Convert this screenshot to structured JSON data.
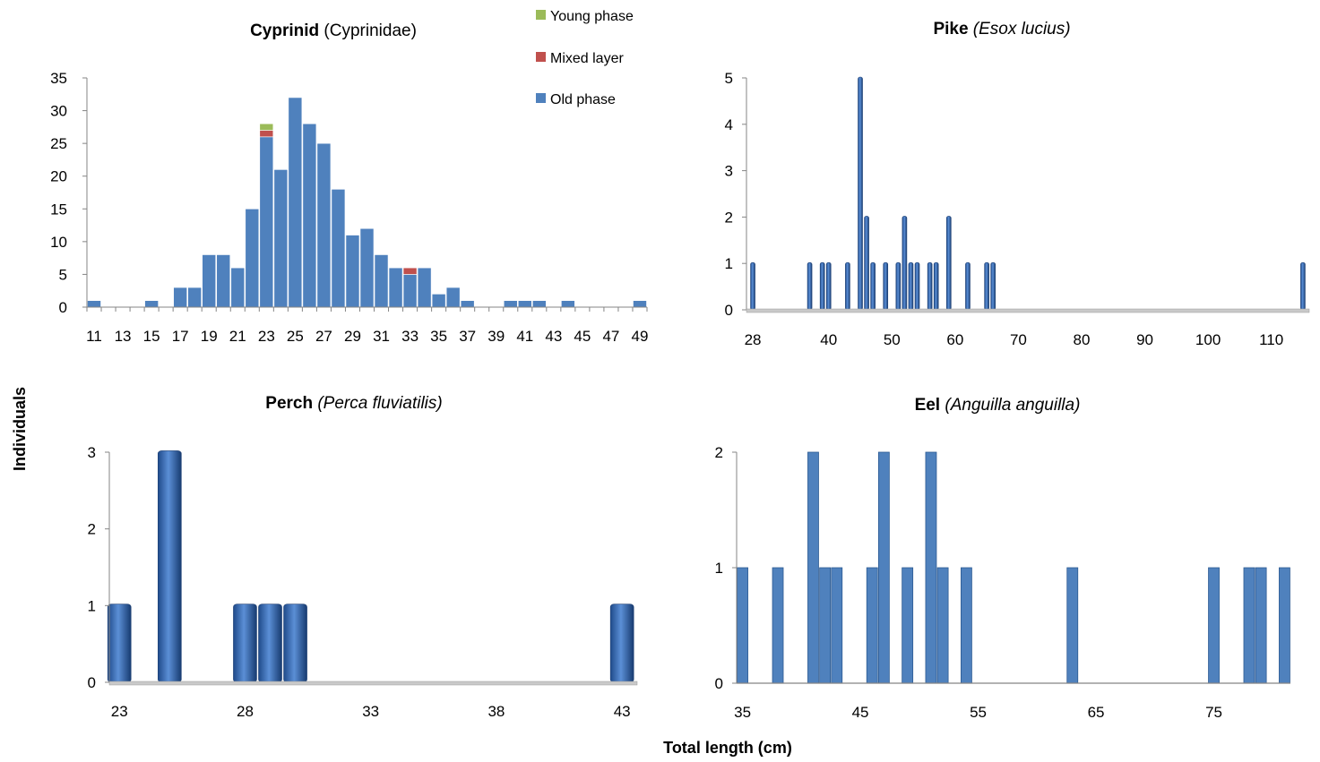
{
  "figure": {
    "ylabel": "Individuals",
    "xlabel": "Total length (cm)"
  },
  "legend": {
    "entries": [
      {
        "label": "Young phase",
        "color": "#9bbb59"
      },
      {
        "label": "Mixed layer",
        "color": "#c0504d"
      },
      {
        "label": "Old phase",
        "color": "#4f81bd"
      }
    ]
  },
  "chart_data": [
    {
      "id": "cyprinid",
      "type": "bar",
      "stacked": true,
      "title_bold": "Cyprinid",
      "title_rest": " (Cyprinidae)",
      "title_italic": false,
      "categories": [
        11,
        12,
        13,
        14,
        15,
        16,
        17,
        18,
        19,
        20,
        21,
        22,
        23,
        24,
        25,
        26,
        27,
        28,
        29,
        30,
        31,
        32,
        33,
        34,
        35,
        36,
        37,
        38,
        39,
        40,
        41,
        42,
        43,
        44,
        45,
        46,
        47,
        48,
        49
      ],
      "x_tick_labels": [
        "11",
        "13",
        "15",
        "17",
        "19",
        "21",
        "23",
        "25",
        "27",
        "29",
        "31",
        "33",
        "35",
        "37",
        "39",
        "41",
        "43",
        "45",
        "47",
        "49"
      ],
      "series": [
        {
          "name": "Old phase",
          "color": "#4f81bd",
          "values": [
            1,
            0,
            0,
            0,
            1,
            0,
            3,
            3,
            8,
            8,
            6,
            15,
            26,
            21,
            32,
            28,
            25,
            18,
            11,
            12,
            8,
            6,
            5,
            6,
            2,
            3,
            1,
            0,
            0,
            1,
            1,
            1,
            0,
            1,
            0,
            0,
            0,
            0,
            1
          ]
        },
        {
          "name": "Mixed layer",
          "color": "#c0504d",
          "values": [
            0,
            0,
            0,
            0,
            0,
            0,
            0,
            0,
            0,
            0,
            0,
            0,
            1,
            0,
            0,
            0,
            0,
            0,
            0,
            0,
            0,
            0,
            1,
            0,
            0,
            0,
            0,
            0,
            0,
            0,
            0,
            0,
            0,
            0,
            0,
            0,
            0,
            0,
            0
          ]
        },
        {
          "name": "Young phase",
          "color": "#9bbb59",
          "values": [
            0,
            0,
            0,
            0,
            0,
            0,
            0,
            0,
            0,
            0,
            0,
            0,
            1,
            0,
            0,
            0,
            0,
            0,
            0,
            0,
            0,
            0,
            0,
            0,
            0,
            0,
            0,
            0,
            0,
            0,
            0,
            0,
            0,
            0,
            0,
            0,
            0,
            0,
            0
          ]
        }
      ],
      "ylim": [
        0,
        35
      ],
      "y_ticks": [
        0,
        5,
        10,
        15,
        20,
        25,
        30,
        35
      ]
    },
    {
      "id": "pike",
      "type": "bar",
      "title_bold": "Pike",
      "title_rest": " (Esox lucius)",
      "title_italic": true,
      "x": [
        28,
        37,
        39,
        40,
        43,
        45,
        46,
        47,
        49,
        51,
        52,
        53,
        54,
        56,
        57,
        59,
        62,
        65,
        66,
        115
      ],
      "values": [
        1,
        1,
        1,
        1,
        1,
        5,
        2,
        1,
        1,
        1,
        2,
        1,
        1,
        1,
        1,
        2,
        1,
        1,
        1,
        1
      ],
      "xlim": [
        27,
        116
      ],
      "x_ticks": [
        28,
        40,
        50,
        60,
        70,
        80,
        90,
        100,
        110
      ],
      "ylim": [
        0,
        5
      ],
      "y_ticks": [
        0,
        1,
        2,
        3,
        4,
        5
      ]
    },
    {
      "id": "perch",
      "type": "bar",
      "title_bold": "Perch",
      "title_rest": " (Perca fluviatilis)",
      "title_italic": true,
      "x": [
        23,
        25,
        28,
        29,
        30,
        43
      ],
      "values": [
        1,
        3,
        1,
        1,
        1,
        1
      ],
      "xlim": [
        22.6,
        43.6
      ],
      "x_ticks": [
        23,
        28,
        33,
        38,
        43
      ],
      "ylim": [
        0,
        3
      ],
      "y_ticks": [
        0,
        1,
        2,
        3
      ]
    },
    {
      "id": "eel",
      "type": "bar",
      "title_bold": "Eel",
      "title_rest": " (Anguilla anguilla)",
      "title_italic": true,
      "x": [
        35,
        38,
        41,
        42,
        43,
        46,
        47,
        49,
        51,
        52,
        54,
        63,
        75,
        78,
        79,
        81
      ],
      "values": [
        1,
        1,
        2,
        1,
        1,
        1,
        2,
        1,
        2,
        1,
        1,
        1,
        1,
        1,
        1,
        1
      ],
      "xlim": [
        34.5,
        81.5
      ],
      "x_ticks": [
        35,
        45,
        55,
        65,
        75
      ],
      "ylim": [
        0,
        2
      ],
      "y_ticks": [
        0,
        1,
        2
      ]
    }
  ]
}
